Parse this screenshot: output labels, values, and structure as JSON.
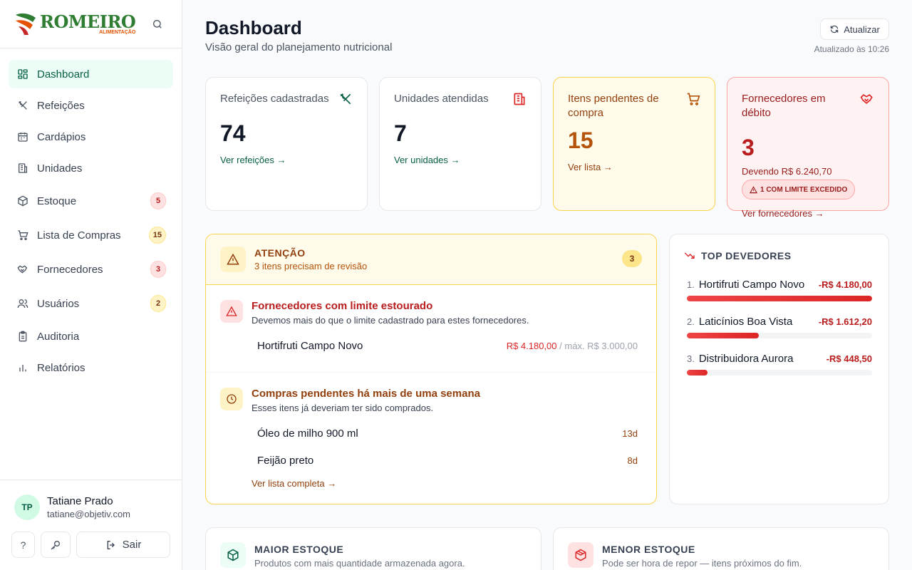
{
  "app": {
    "logo_main": "ROMEIRO",
    "logo_sub": "ALIMENTAÇÃO"
  },
  "sidebar": {
    "items": [
      {
        "label": "Dashboard",
        "icon": "dashboard-icon",
        "active": true
      },
      {
        "label": "Refeições",
        "icon": "utensils-icon"
      },
      {
        "label": "Cardápios",
        "icon": "calendar-icon"
      },
      {
        "label": "Unidades",
        "icon": "building-icon"
      },
      {
        "label": "Estoque",
        "icon": "package-icon",
        "badge": "5"
      },
      {
        "label": "Lista de Compras",
        "icon": "cart-icon",
        "badge": "15"
      },
      {
        "label": "Fornecedores",
        "icon": "handshake-icon",
        "badge": "3"
      },
      {
        "label": "Usuários",
        "icon": "users-icon",
        "badge": "2"
      },
      {
        "label": "Auditoria",
        "icon": "clipboard-icon"
      },
      {
        "label": "Relatórios",
        "icon": "bar-chart-icon"
      }
    ]
  },
  "user": {
    "initials": "TP",
    "name": "Tatiane Prado",
    "email": "tatiane@objetiv.com",
    "help_label": "?",
    "logout_label": "Sair"
  },
  "header": {
    "title": "Dashboard",
    "subtitle": "Visão geral do planejamento nutricional",
    "refresh_label": "Atualizar",
    "updated_text": "Atualizado às 10:26"
  },
  "cards": {
    "meals": {
      "label": "Refeições cadastradas",
      "value": "74",
      "link": "Ver refeições →"
    },
    "units": {
      "label": "Unidades atendidas",
      "value": "7",
      "link": "Ver unidades →"
    },
    "pending": {
      "label": "Itens pendentes de compra",
      "value": "15",
      "link": "Ver lista →"
    },
    "suppliers": {
      "label": "Fornecedores em débito",
      "value": "3",
      "debt": "Devendo R$ 6.240,70",
      "pill": "1 COM LIMITE EXCEDIDO",
      "link": "Ver fornecedores →"
    }
  },
  "attention": {
    "title": "ATENÇÃO",
    "subtitle": "3 itens precisam de revisão",
    "count": "3",
    "limit_section": {
      "title": "Fornecedores com limite estourado",
      "desc": "Devemos mais do que o limite cadastrado para estes fornecedores.",
      "rows": [
        {
          "name": "Hortifruti Campo Novo",
          "amount": "R$ 4.180,00",
          "limit": "/ máx. R$ 3.000,00"
        }
      ]
    },
    "pending_section": {
      "title": "Compras pendentes há mais de uma semana",
      "desc": "Esses itens já deveriam ter sido comprados.",
      "rows": [
        {
          "name": "Óleo de milho 900 ml",
          "age": "13d"
        },
        {
          "name": "Feijão preto",
          "age": "8d"
        }
      ],
      "link": "Ver lista completa →"
    }
  },
  "top_debtors": {
    "title": "TOP DEVEDORES",
    "items": [
      {
        "rank": "1.",
        "name": "Hortifruti Campo Novo",
        "amount": "-R$ 4.180,00",
        "fraction": 1.0
      },
      {
        "rank": "2.",
        "name": "Laticínios Boa Vista",
        "amount": "-R$ 1.612,20",
        "fraction": 0.39
      },
      {
        "rank": "3.",
        "name": "Distribuidora Aurora",
        "amount": "-R$ 448,50",
        "fraction": 0.11
      }
    ]
  },
  "bottom": {
    "most_stock": {
      "title": "MAIOR ESTOQUE",
      "subtitle": "Produtos com mais quantidade armazenada agora."
    },
    "least_stock": {
      "title": "MENOR ESTOQUE",
      "subtitle": "Pode ser hora de repor — itens próximos do fim."
    }
  },
  "colors": {
    "brand_green": "#065f46",
    "amber": "#b45309",
    "red": "#b91c1c"
  }
}
